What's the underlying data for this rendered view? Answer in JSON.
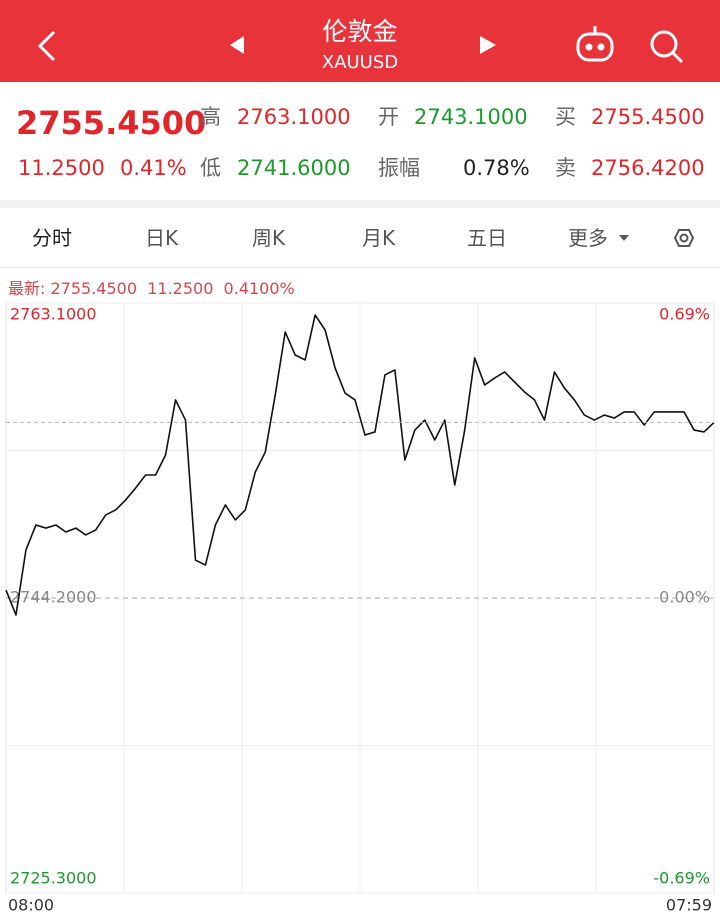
{
  "header": {
    "title": "伦敦金",
    "subtitle": "XAUUSD"
  },
  "quote": {
    "price": "2755.4500",
    "change": "11.2500",
    "change_pct": "0.41%",
    "fields": [
      {
        "label": "高",
        "value": "2763.1000"
      },
      {
        "label": "开",
        "value": "2743.1000"
      },
      {
        "label": "买",
        "value": "2755.4500"
      },
      {
        "label": "低",
        "value": "2741.6000"
      },
      {
        "label": "振幅",
        "value": "0.78%"
      },
      {
        "label": "卖",
        "value": "2756.4200"
      }
    ]
  },
  "tabs": [
    "分时",
    "日K",
    "周K",
    "月K",
    "五日",
    "更多"
  ],
  "latest": {
    "label": "最新:",
    "price": "2755.4500",
    "change": "11.2500",
    "change_pct": "0.4100%"
  },
  "chart_data": {
    "type": "line",
    "categories": [
      "08:00",
      null,
      null,
      null,
      null,
      null,
      null,
      null,
      null,
      null,
      null,
      null,
      null,
      null,
      null,
      null,
      null,
      null,
      null,
      null,
      null,
      null,
      null,
      null,
      null,
      null,
      null,
      null,
      null,
      null,
      null,
      null,
      null,
      null,
      null,
      null,
      null,
      null,
      null,
      null,
      null,
      null,
      null,
      null,
      null,
      null,
      null,
      null,
      null,
      null,
      null,
      null,
      null,
      null,
      null,
      null,
      null,
      null,
      null,
      null,
      null,
      null,
      null,
      null,
      null,
      null,
      null,
      null,
      null,
      null,
      null,
      "07:59"
    ],
    "series": [
      {
        "color": "#111111",
        "values": [
          2744.71,
          2743.11,
          2747.28,
          2748.88,
          2748.68,
          2748.88,
          2748.43,
          2748.68,
          2748.24,
          2748.56,
          2749.52,
          2749.84,
          2750.48,
          2751.25,
          2752.08,
          2752.08,
          2753.36,
          2756.89,
          2755.6,
          2746.63,
          2746.31,
          2748.88,
          2750.16,
          2749.2,
          2749.84,
          2752.27,
          2753.55,
          2757.21,
          2761.24,
          2759.77,
          2759.45,
          2762.33,
          2761.37,
          2758.94,
          2757.33,
          2756.89,
          2754.64,
          2754.84,
          2758.49,
          2758.81,
          2753.04,
          2754.96,
          2755.6,
          2754.32,
          2755.6,
          2751.44,
          2754.96,
          2759.58,
          2757.85,
          2758.29,
          2758.68,
          2758.04,
          2757.4,
          2756.89,
          2755.6,
          2758.68,
          2757.65,
          2756.89,
          2755.92,
          2755.6,
          2755.92,
          2755.73,
          2756.12,
          2756.12,
          2755.28,
          2756.12,
          2756.12,
          2756.12,
          2756.12,
          2754.96,
          2754.84,
          2755.45
        ]
      }
    ],
    "ylim": [
      2725.3,
      2763.1
    ],
    "yticks": [
      {
        "value": 2763.1,
        "label": "2763.1000"
      },
      {
        "value": 2744.2,
        "label": "2744.2000"
      },
      {
        "value": 2725.3,
        "label": "2725.3000"
      }
    ],
    "y2lim": [
      -0.69,
      0.69
    ],
    "y2ticks": [
      {
        "value": 0.69,
        "label": "0.69%"
      },
      {
        "value": 0,
        "label": "0.00%"
      },
      {
        "value": -0.69,
        "label": "-0.69%"
      }
    ],
    "grid": true
  }
}
